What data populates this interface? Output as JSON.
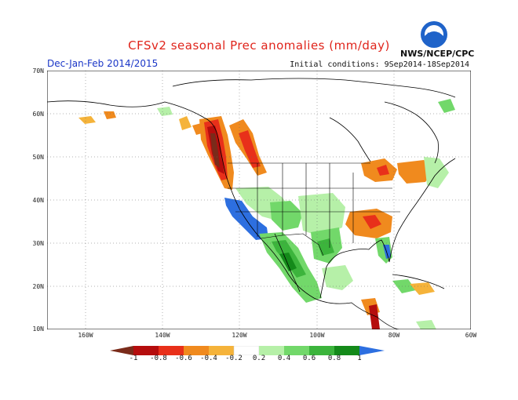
{
  "title": "CFSv2 seasonal Prec anomalies (mm/day)",
  "season": "Dec-Jan-Feb 2014/2015",
  "initial_conditions": "Initial conditions: 9Sep2014-18Sep2014",
  "agency": "NWS/NCEP/CPC",
  "logo": {
    "text": "NOAA",
    "icon": "noaa-logo-icon"
  },
  "map": {
    "lon_range": [
      -170,
      -60
    ],
    "lat_range": [
      10,
      70
    ],
    "lat_labels": [
      "70N",
      "60N",
      "50N",
      "40N",
      "30N",
      "20N",
      "10N"
    ],
    "lon_labels": [
      "160W",
      "140W",
      "120W",
      "100W",
      "80W",
      "60W"
    ]
  },
  "colorbar": {
    "labels": [
      "-1",
      "-0.8",
      "-0.6",
      "-0.4",
      "-0.2",
      "0.2",
      "0.4",
      "0.6",
      "0.8",
      "1"
    ],
    "colors": [
      "#7a2b1a",
      "#b50d0d",
      "#e8301a",
      "#f08a1e",
      "#f5b33a",
      "#ffffff",
      "#b6f0a8",
      "#72d86a",
      "#3cb43c",
      "#148a1a",
      "#2d6fe0"
    ]
  }
}
